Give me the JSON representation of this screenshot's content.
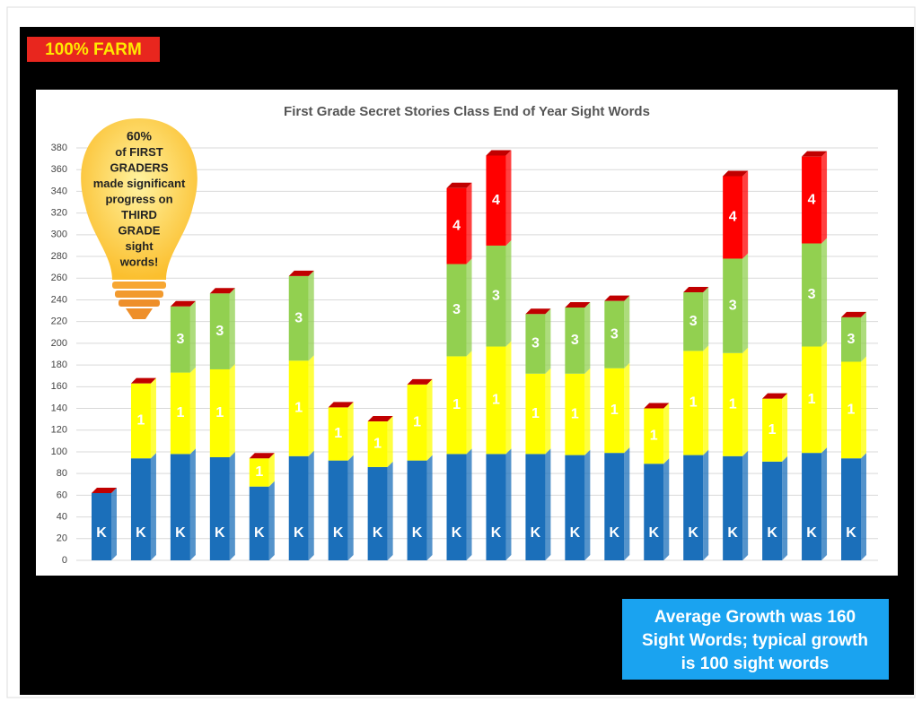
{
  "badge": "100% FARM",
  "callout": [
    "60%",
    "of FIRST",
    "GRADERS",
    "made significant",
    "progress on",
    "THIRD",
    "GRADE",
    "sight",
    "words!"
  ],
  "note": [
    "Average Growth was 160",
    "Sight Words; typical growth",
    "is 100 sight words"
  ],
  "chart_data": {
    "type": "stacked_bar",
    "title": "First Grade Secret Stories Class End of Year Sight Words",
    "ylim": [
      0,
      380
    ],
    "yticks": [
      0,
      20,
      40,
      60,
      80,
      100,
      120,
      140,
      160,
      180,
      200,
      220,
      240,
      260,
      280,
      300,
      320,
      340,
      360,
      380
    ],
    "grid": true,
    "series": [
      {
        "name": "K",
        "color": "#1b6fba",
        "values": [
          62,
          94,
          98,
          95,
          68,
          96,
          92,
          86,
          92,
          98,
          98,
          98,
          97,
          99,
          89,
          97,
          96,
          91,
          99,
          94
        ]
      },
      {
        "name": "1",
        "color": "#ffff00",
        "values": [
          null,
          69,
          75,
          81,
          26,
          88,
          49,
          42,
          70,
          90,
          99,
          74,
          75,
          78,
          51,
          96,
          95,
          58,
          98,
          89
        ]
      },
      {
        "name": "3",
        "color": "#92d050",
        "values": [
          null,
          null,
          61,
          70,
          null,
          78,
          null,
          null,
          null,
          85,
          93,
          55,
          61,
          62,
          null,
          54,
          87,
          null,
          95,
          41
        ]
      },
      {
        "name": "4",
        "color": "#ff0000",
        "values": [
          null,
          null,
          null,
          null,
          null,
          null,
          null,
          null,
          null,
          70,
          83,
          null,
          null,
          null,
          null,
          null,
          76,
          null,
          80,
          null
        ]
      }
    ]
  }
}
